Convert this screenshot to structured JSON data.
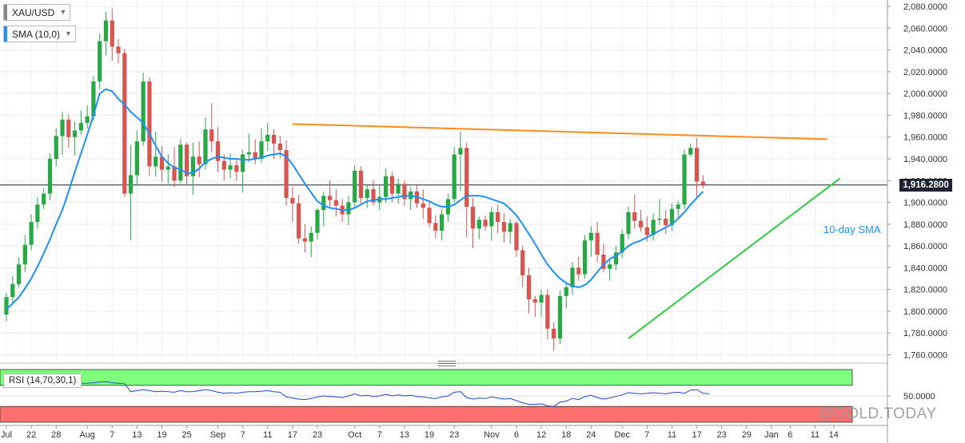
{
  "legend": {
    "symbol": "XAU/USD",
    "indicator": "SMA (10,0)",
    "symbol_color": "#888888",
    "indicator_color": "#1e90ff"
  },
  "current_price": "1,916.2800",
  "annotation": "10-day SMA",
  "rsi_legend": "RSI (14,70,30,1)",
  "watermark": "@GOLD.TODAY",
  "colors": {
    "bull": "#27a844",
    "bear": "#d9534f",
    "sma": "#1e90ff",
    "resistance": "#ff8c1a",
    "support": "#2ecc40",
    "rsi_line": "#1e48d6",
    "overbought": "#7dff7d",
    "oversold": "#ff6f6f"
  },
  "chart_data": {
    "type": "candlestick",
    "title": "XAU/USD",
    "ylim": [
      1750,
      2085
    ],
    "y_ticks": [
      1760,
      1780,
      1800,
      1820,
      1840,
      1860,
      1880,
      1900,
      1920,
      1940,
      1960,
      1980,
      2000,
      2020,
      2040,
      2060,
      2080
    ],
    "y_tick_labels": [
      "1,760.0000",
      "1,780.0000",
      "1,800.0000",
      "1,820.0000",
      "1,840.0000",
      "1,860.0000",
      "1,880.0000",
      "1,900.0000",
      "1,920.0000",
      "1,940.0000",
      "1,960.0000",
      "1,980.0000",
      "2,000.0000",
      "2,020.0000",
      "2,040.0000",
      "2,060.0000",
      "2,080.0000"
    ],
    "x_ticks": [
      {
        "label": "Jul",
        "bar": 0
      },
      {
        "label": "22",
        "bar": 4
      },
      {
        "label": "28",
        "bar": 8
      },
      {
        "label": "Aug",
        "bar": 13
      },
      {
        "label": "7",
        "bar": 17
      },
      {
        "label": "13",
        "bar": 21
      },
      {
        "label": "19",
        "bar": 25
      },
      {
        "label": "25",
        "bar": 29
      },
      {
        "label": "Sep",
        "bar": 34
      },
      {
        "label": "7",
        "bar": 38
      },
      {
        "label": "11",
        "bar": 42
      },
      {
        "label": "17",
        "bar": 46
      },
      {
        "label": "23",
        "bar": 50
      },
      {
        "label": "Oct",
        "bar": 56
      },
      {
        "label": "7",
        "bar": 60
      },
      {
        "label": "13",
        "bar": 64
      },
      {
        "label": "19",
        "bar": 68
      },
      {
        "label": "23",
        "bar": 72
      },
      {
        "label": "Nov",
        "bar": 78
      },
      {
        "label": "6",
        "bar": 82
      },
      {
        "label": "12",
        "bar": 86
      },
      {
        "label": "18",
        "bar": 90
      },
      {
        "label": "24",
        "bar": 94
      },
      {
        "label": "Dec",
        "bar": 99
      },
      {
        "label": "7",
        "bar": 103
      },
      {
        "label": "11",
        "bar": 107
      },
      {
        "label": "17",
        "bar": 111
      },
      {
        "label": "23",
        "bar": 115
      },
      {
        "label": "29",
        "bar": 119
      },
      {
        "label": "Jan",
        "bar": 123
      },
      {
        "label": "6",
        "bar": 126
      },
      {
        "label": "11",
        "bar": 130
      },
      {
        "label": "14",
        "bar": 133
      }
    ],
    "candles": [
      [
        1797,
        1817,
        1791,
        1813
      ],
      [
        1813,
        1832,
        1808,
        1825
      ],
      [
        1825,
        1850,
        1822,
        1843
      ],
      [
        1843,
        1870,
        1836,
        1861
      ],
      [
        1861,
        1889,
        1856,
        1882
      ],
      [
        1882,
        1905,
        1876,
        1898
      ],
      [
        1898,
        1913,
        1894,
        1908
      ],
      [
        1908,
        1945,
        1902,
        1940
      ],
      [
        1940,
        1968,
        1933,
        1961
      ],
      [
        1961,
        1983,
        1944,
        1976
      ],
      [
        1976,
        1981,
        1950,
        1960
      ],
      [
        1960,
        1974,
        1943,
        1966
      ],
      [
        1966,
        1984,
        1962,
        1973
      ],
      [
        1973,
        1989,
        1968,
        1979
      ],
      [
        1979,
        2016,
        1975,
        2011
      ],
      [
        2011,
        2055,
        2004,
        2048
      ],
      [
        2048,
        2075,
        2035,
        2067
      ],
      [
        2067,
        2078,
        2030,
        2043
      ],
      [
        2043,
        2050,
        2028,
        2037
      ],
      [
        2037,
        2041,
        1905,
        1908
      ],
      [
        1908,
        1953,
        1865,
        1925
      ],
      [
        1925,
        1966,
        1916,
        1956
      ],
      [
        1956,
        2019,
        1952,
        2011
      ],
      [
        2011,
        2015,
        1924,
        1933
      ],
      [
        1933,
        1965,
        1924,
        1942
      ],
      [
        1942,
        1952,
        1919,
        1930
      ],
      [
        1930,
        1944,
        1917,
        1933
      ],
      [
        1933,
        1951,
        1914,
        1920
      ],
      [
        1920,
        1958,
        1917,
        1953
      ],
      [
        1953,
        1955,
        1916,
        1924
      ],
      [
        1924,
        1955,
        1907,
        1942
      ],
      [
        1942,
        1956,
        1923,
        1935
      ],
      [
        1935,
        1978,
        1930,
        1967
      ],
      [
        1967,
        1991,
        1946,
        1956
      ],
      [
        1956,
        1969,
        1928,
        1938
      ],
      [
        1938,
        1944,
        1920,
        1930
      ],
      [
        1930,
        1945,
        1922,
        1934
      ],
      [
        1934,
        1939,
        1920,
        1928
      ],
      [
        1928,
        1948,
        1909,
        1944
      ],
      [
        1944,
        1963,
        1937,
        1946
      ],
      [
        1946,
        1958,
        1935,
        1940
      ],
      [
        1940,
        1968,
        1936,
        1956
      ],
      [
        1956,
        1973,
        1947,
        1962
      ],
      [
        1962,
        1967,
        1940,
        1954
      ],
      [
        1954,
        1961,
        1941,
        1948
      ],
      [
        1948,
        1957,
        1897,
        1904
      ],
      [
        1904,
        1914,
        1882,
        1899
      ],
      [
        1899,
        1907,
        1862,
        1867
      ],
      [
        1867,
        1880,
        1854,
        1864
      ],
      [
        1864,
        1878,
        1850,
        1872
      ],
      [
        1872,
        1895,
        1866,
        1893
      ],
      [
        1893,
        1910,
        1878,
        1906
      ],
      [
        1906,
        1920,
        1896,
        1902
      ],
      [
        1902,
        1912,
        1887,
        1897
      ],
      [
        1897,
        1903,
        1882,
        1889
      ],
      [
        1889,
        1906,
        1879,
        1900
      ],
      [
        1900,
        1934,
        1895,
        1929
      ],
      [
        1929,
        1933,
        1898,
        1904
      ],
      [
        1904,
        1917,
        1895,
        1912
      ],
      [
        1912,
        1920,
        1897,
        1900
      ],
      [
        1900,
        1916,
        1893,
        1905
      ],
      [
        1905,
        1931,
        1900,
        1924
      ],
      [
        1924,
        1928,
        1900,
        1908
      ],
      [
        1908,
        1922,
        1899,
        1917
      ],
      [
        1917,
        1920,
        1897,
        1903
      ],
      [
        1903,
        1914,
        1893,
        1910
      ],
      [
        1910,
        1917,
        1895,
        1899
      ],
      [
        1899,
        1912,
        1885,
        1895
      ],
      [
        1895,
        1900,
        1877,
        1881
      ],
      [
        1881,
        1888,
        1867,
        1874
      ],
      [
        1874,
        1894,
        1865,
        1889
      ],
      [
        1889,
        1908,
        1882,
        1903
      ],
      [
        1903,
        1951,
        1900,
        1944
      ],
      [
        1944,
        1965,
        1910,
        1950
      ],
      [
        1950,
        1955,
        1868,
        1896
      ],
      [
        1896,
        1904,
        1858,
        1876
      ],
      [
        1876,
        1887,
        1866,
        1884
      ],
      [
        1884,
        1888,
        1874,
        1878
      ],
      [
        1878,
        1896,
        1865,
        1891
      ],
      [
        1891,
        1898,
        1872,
        1882
      ],
      [
        1882,
        1890,
        1863,
        1873
      ],
      [
        1873,
        1885,
        1862,
        1881
      ],
      [
        1881,
        1883,
        1850,
        1856
      ],
      [
        1856,
        1860,
        1822,
        1833
      ],
      [
        1833,
        1840,
        1798,
        1811
      ],
      [
        1811,
        1814,
        1795,
        1808
      ],
      [
        1808,
        1820,
        1795,
        1815
      ],
      [
        1815,
        1820,
        1774,
        1784
      ],
      [
        1784,
        1790,
        1764,
        1775
      ],
      [
        1775,
        1819,
        1770,
        1814
      ],
      [
        1814,
        1826,
        1803,
        1822
      ],
      [
        1822,
        1845,
        1815,
        1840
      ],
      [
        1840,
        1850,
        1828,
        1834
      ],
      [
        1834,
        1870,
        1830,
        1865
      ],
      [
        1865,
        1878,
        1850,
        1872
      ],
      [
        1872,
        1882,
        1845,
        1852
      ],
      [
        1852,
        1862,
        1836,
        1839
      ],
      [
        1839,
        1847,
        1828,
        1843
      ],
      [
        1843,
        1860,
        1838,
        1854
      ],
      [
        1854,
        1875,
        1849,
        1871
      ],
      [
        1871,
        1896,
        1866,
        1891
      ],
      [
        1891,
        1907,
        1876,
        1883
      ],
      [
        1883,
        1893,
        1873,
        1877
      ],
      [
        1877,
        1887,
        1864,
        1870
      ],
      [
        1870,
        1890,
        1865,
        1884
      ],
      [
        1884,
        1903,
        1879,
        1885
      ],
      [
        1885,
        1893,
        1871,
        1879
      ],
      [
        1879,
        1899,
        1874,
        1894
      ],
      [
        1894,
        1901,
        1886,
        1898
      ],
      [
        1898,
        1948,
        1894,
        1944
      ],
      [
        1944,
        1954,
        1942,
        1950
      ],
      [
        1950,
        1959,
        1903,
        1919
      ],
      [
        1919,
        1925,
        1913,
        1916
      ]
    ],
    "sma": [
      1802,
      1807,
      1813,
      1821,
      1830,
      1841,
      1853,
      1866,
      1880,
      1893,
      1910,
      1928,
      1945,
      1962,
      1980,
      2000,
      2004,
      2002,
      1995,
      1990,
      1983,
      1978,
      1973,
      1963,
      1952,
      1942,
      1936,
      1932,
      1930,
      1927,
      1927,
      1931,
      1937,
      1940,
      1942,
      1941,
      1940,
      1940,
      1939,
      1939,
      1940,
      1941,
      1943,
      1944,
      1945,
      1942,
      1935,
      1926,
      1917,
      1909,
      1901,
      1897,
      1895,
      1894,
      1893,
      1893,
      1895,
      1898,
      1901,
      1902,
      1903,
      1903,
      1904,
      1905,
      1906,
      1906,
      1905,
      1903,
      1901,
      1898,
      1896,
      1896,
      1898,
      1902,
      1906,
      1906,
      1906,
      1905,
      1903,
      1901,
      1899,
      1894,
      1888,
      1880,
      1871,
      1862,
      1852,
      1843,
      1836,
      1830,
      1826,
      1823,
      1822,
      1824,
      1829,
      1836,
      1843,
      1848,
      1851,
      1855,
      1860,
      1863,
      1865,
      1868,
      1871,
      1874,
      1877,
      1880,
      1885,
      1891,
      1898,
      1904,
      1910
    ],
    "resistance_line": {
      "from": {
        "bar": 46,
        "price": 1972
      },
      "to": {
        "bar": 132,
        "price": 1958
      }
    },
    "support_line": {
      "from": {
        "bar": 100,
        "price": 1775
      },
      "to": {
        "bar": 134,
        "price": 1922
      }
    },
    "rsi": {
      "ylim": [
        0,
        100
      ],
      "levels": [
        70,
        50,
        30
      ],
      "y_tick_labels": [
        "50.0000"
      ],
      "values": [
        72,
        70,
        70,
        71,
        72,
        72,
        73,
        73,
        74,
        74,
        72,
        73,
        74,
        74,
        75,
        76,
        77,
        75,
        74,
        73,
        58,
        60,
        62,
        60,
        58,
        59,
        58,
        57,
        60,
        58,
        58,
        60,
        62,
        60,
        57,
        55,
        56,
        55,
        57,
        58,
        58,
        59,
        60,
        58,
        57,
        48,
        46,
        44,
        43,
        45,
        48,
        50,
        49,
        48,
        47,
        50,
        54,
        50,
        51,
        49,
        50,
        53,
        50,
        52,
        50,
        51,
        49,
        48,
        46,
        45,
        48,
        50,
        57,
        58,
        47,
        44,
        46,
        45,
        48,
        46,
        44,
        45,
        41,
        37,
        34,
        34,
        35,
        31,
        30,
        38,
        40,
        45,
        43,
        49,
        51,
        47,
        44,
        46,
        49,
        52,
        56,
        55,
        54,
        55,
        56,
        55,
        54,
        56,
        57,
        55,
        61,
        62,
        55,
        54
      ]
    }
  }
}
